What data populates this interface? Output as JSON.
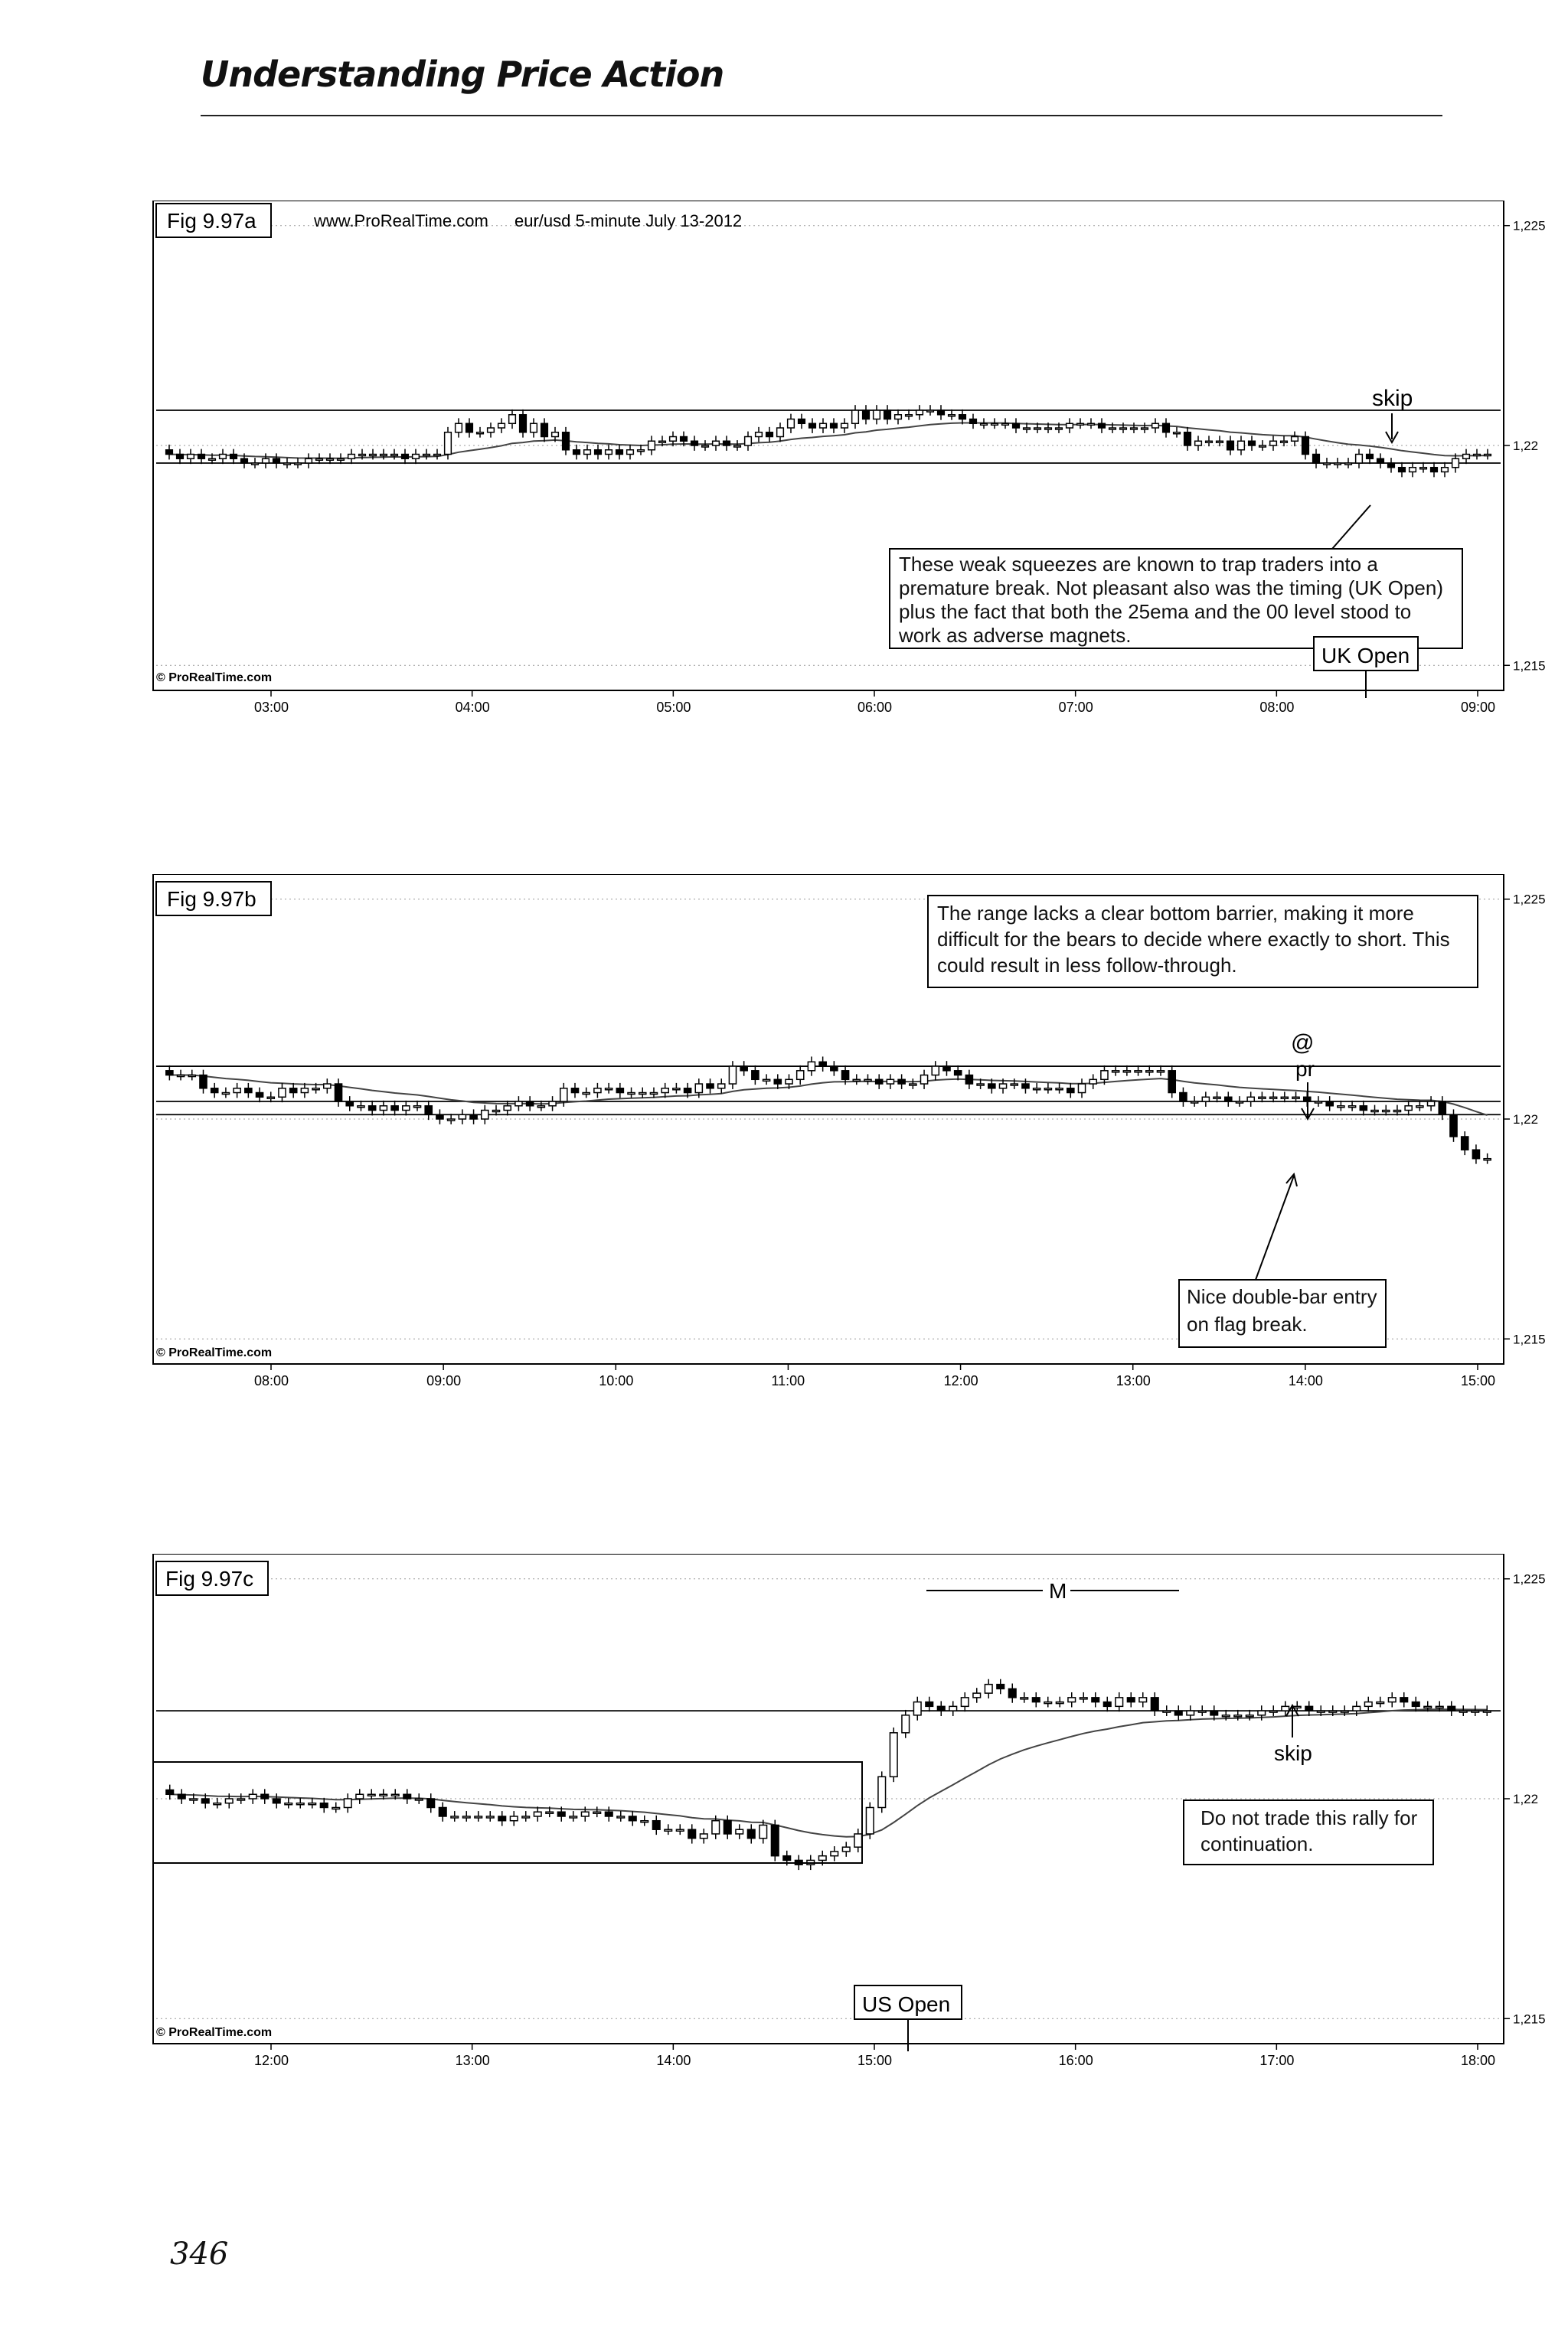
{
  "page": {
    "title": "Understanding Price Action",
    "page_number": "346"
  },
  "chart_data": [
    {
      "type": "candlestick",
      "fig_label": "Fig 9.97a",
      "source": "www.ProRealTime.com",
      "title": "eur/usd  5-minute  July 13-2012",
      "watermark": "© ProRealTime.com",
      "x_ticks": [
        "03:00",
        "04:00",
        "05:00",
        "06:00",
        "07:00",
        "08:00",
        "09:00"
      ],
      "y_ticks": [
        "1,225",
        "1,22",
        "1,215"
      ],
      "ylim": [
        1.2145,
        1.2255
      ],
      "closes": [
        1.2198,
        1.2197,
        1.2198,
        1.2197,
        1.2197,
        1.2198,
        1.2197,
        1.2196,
        1.2196,
        1.2197,
        1.2196,
        1.2196,
        1.2196,
        1.2197,
        1.2197,
        1.2197,
        1.2197,
        1.2198,
        1.2198,
        1.2198,
        1.2198,
        1.2198,
        1.2197,
        1.2198,
        1.2198,
        1.2198,
        1.2203,
        1.2205,
        1.2203,
        1.2203,
        1.2204,
        1.2205,
        1.2207,
        1.2203,
        1.2205,
        1.2202,
        1.2203,
        1.2199,
        1.2198,
        1.2199,
        1.2198,
        1.2199,
        1.2198,
        1.2199,
        1.2199,
        1.2201,
        1.2201,
        1.2202,
        1.2201,
        1.22,
        1.22,
        1.2201,
        1.22,
        1.22,
        1.2202,
        1.2203,
        1.2202,
        1.2204,
        1.2206,
        1.2205,
        1.2204,
        1.2205,
        1.2204,
        1.2205,
        1.2208,
        1.2206,
        1.2208,
        1.2206,
        1.2207,
        1.2207,
        1.2208,
        1.2208,
        1.2207,
        1.2207,
        1.2206,
        1.2205,
        1.2205,
        1.2205,
        1.2205,
        1.2204,
        1.2204,
        1.2204,
        1.2204,
        1.2204,
        1.2205,
        1.2205,
        1.2205,
        1.2204,
        1.2204,
        1.2204,
        1.2204,
        1.2204,
        1.2205,
        1.2203,
        1.2203,
        1.22,
        1.2201,
        1.2201,
        1.2201,
        1.2199,
        1.2201,
        1.22,
        1.22,
        1.2201,
        1.2201,
        1.2202,
        1.2198,
        1.2196,
        1.2196,
        1.2196,
        1.2196,
        1.2198,
        1.2197,
        1.2196,
        1.2195,
        1.2194,
        1.2195,
        1.2195,
        1.2194,
        1.2195,
        1.2197,
        1.2198,
        1.2198,
        1.2198
      ],
      "ema_label": "25ema",
      "levels": [
        1.2208,
        1.2196
      ],
      "annotations": [
        {
          "text": "skip",
          "x_index": 112,
          "y": 1.2203
        },
        {
          "text": "These weak squeezes are known to trap traders into a premature break. Not pleasant also was the timing (UK Open) plus the fact that both the 25ema and the 00 level stood to work as adverse magnets.",
          "x_index": 100,
          "y": 1.2185
        },
        {
          "text": "UK Open",
          "x_index": 108,
          "y": 1.2165
        }
      ]
    },
    {
      "type": "candlestick",
      "fig_label": "Fig 9.97b",
      "watermark": "© ProRealTime.com",
      "x_ticks": [
        "08:00",
        "09:00",
        "10:00",
        "11:00",
        "12:00",
        "13:00",
        "14:00",
        "15:00"
      ],
      "y_ticks": [
        "1,225",
        "1,22",
        "1,215"
      ],
      "ylim": [
        1.2145,
        1.2255
      ],
      "closes": [
        1.221,
        1.221,
        1.221,
        1.2207,
        1.2206,
        1.2206,
        1.2207,
        1.2206,
        1.2205,
        1.2205,
        1.2207,
        1.2206,
        1.2207,
        1.2207,
        1.2208,
        1.2204,
        1.2203,
        1.2203,
        1.2202,
        1.2203,
        1.2202,
        1.2203,
        1.2203,
        1.2201,
        1.22,
        1.22,
        1.2201,
        1.22,
        1.2202,
        1.2202,
        1.2203,
        1.2204,
        1.2203,
        1.2203,
        1.2204,
        1.2207,
        1.2206,
        1.2206,
        1.2207,
        1.2207,
        1.2206,
        1.2206,
        1.2206,
        1.2206,
        1.2207,
        1.2207,
        1.2206,
        1.2208,
        1.2207,
        1.2208,
        1.2212,
        1.2211,
        1.2209,
        1.2209,
        1.2208,
        1.2209,
        1.2211,
        1.2213,
        1.2212,
        1.2211,
        1.2209,
        1.2209,
        1.2209,
        1.2208,
        1.2209,
        1.2208,
        1.2208,
        1.221,
        1.2212,
        1.2211,
        1.221,
        1.2208,
        1.2208,
        1.2207,
        1.2208,
        1.2208,
        1.2207,
        1.2207,
        1.2207,
        1.2207,
        1.2206,
        1.2208,
        1.2209,
        1.2211,
        1.2211,
        1.2211,
        1.2211,
        1.2211,
        1.2211,
        1.2206,
        1.2204,
        1.2204,
        1.2205,
        1.2205,
        1.2204,
        1.2204,
        1.2205,
        1.2205,
        1.2205,
        1.2205,
        1.2205,
        1.2204,
        1.2204,
        1.2203,
        1.2203,
        1.2203,
        1.2202,
        1.2202,
        1.2202,
        1.2202,
        1.2203,
        1.2203,
        1.2204,
        1.2201,
        1.2196,
        1.2193,
        1.2191,
        1.2191
      ],
      "levels": [
        1.2212,
        1.2204,
        1.2201
      ],
      "annotations": [
        {
          "text": "The range lacks a clear bottom barrier, making it more difficult for the bears to decide where exactly to short. This could result in less follow-through.",
          "x_index": 80,
          "y": 1.2233
        },
        {
          "text": "@",
          "x_index": 99,
          "y": 1.2212
        },
        {
          "text": "pr",
          "x_index": 99,
          "y": 1.221
        },
        {
          "text": "Nice double-bar entry on flag break.",
          "x_index": 95,
          "y": 1.2186
        }
      ]
    },
    {
      "type": "candlestick",
      "fig_label": "Fig 9.97c",
      "watermark": "© ProRealTime.com",
      "x_ticks": [
        "12:00",
        "13:00",
        "14:00",
        "15:00",
        "16:00",
        "17:00",
        "18:00"
      ],
      "y_ticks": [
        "1,225",
        "1,22",
        "1,215"
      ],
      "ylim": [
        1.2145,
        1.2255
      ],
      "closes": [
        1.2201,
        1.22,
        1.22,
        1.2199,
        1.2199,
        1.22,
        1.22,
        1.2201,
        1.22,
        1.2199,
        1.2199,
        1.2199,
        1.2199,
        1.2198,
        1.2198,
        1.22,
        1.2201,
        1.2201,
        1.2201,
        1.2201,
        1.22,
        1.22,
        1.2198,
        1.2196,
        1.2196,
        1.2196,
        1.2196,
        1.2196,
        1.2195,
        1.2196,
        1.2196,
        1.2197,
        1.2197,
        1.2196,
        1.2196,
        1.2197,
        1.2197,
        1.2196,
        1.2196,
        1.2195,
        1.2195,
        1.2193,
        1.2193,
        1.2193,
        1.2191,
        1.2192,
        1.2195,
        1.2192,
        1.2193,
        1.2191,
        1.2194,
        1.2187,
        1.2186,
        1.2185,
        1.2186,
        1.2187,
        1.2188,
        1.2189,
        1.2192,
        1.2198,
        1.2205,
        1.2215,
        1.2219,
        1.2222,
        1.2221,
        1.222,
        1.2221,
        1.2223,
        1.2224,
        1.2226,
        1.2225,
        1.2223,
        1.2223,
        1.2222,
        1.2222,
        1.2222,
        1.2223,
        1.2223,
        1.2222,
        1.2221,
        1.2223,
        1.2222,
        1.2223,
        1.222,
        1.222,
        1.2219,
        1.222,
        1.222,
        1.2219,
        1.2219,
        1.2219,
        1.2219,
        1.222,
        1.222,
        1.2221,
        1.2221,
        1.222,
        1.222,
        1.222,
        1.222,
        1.2221,
        1.2222,
        1.2222,
        1.2223,
        1.2222,
        1.2221,
        1.2221,
        1.2221,
        1.222,
        1.222,
        1.222,
        1.222
      ],
      "levels": [
        1.222
      ],
      "annotations": [
        {
          "text": "M",
          "x_index": 67,
          "y": 1.223
        },
        {
          "text": "skip",
          "x_index": 88,
          "y": 1.2213
        },
        {
          "text": "Do not trade this rally for continuation.",
          "x_index": 92,
          "y": 1.22
        },
        {
          "text": "US Open",
          "x_index": 57,
          "y": 1.2164
        }
      ]
    }
  ]
}
